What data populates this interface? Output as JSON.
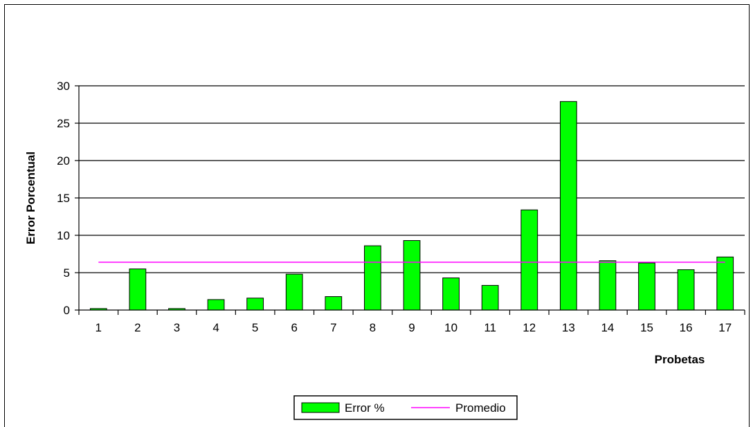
{
  "chart_data": {
    "type": "bar",
    "categories": [
      "1",
      "2",
      "3",
      "4",
      "5",
      "6",
      "7",
      "8",
      "9",
      "10",
      "11",
      "12",
      "13",
      "14",
      "15",
      "16",
      "17"
    ],
    "series": [
      {
        "name": "Error %",
        "type": "bar",
        "color": "#00ff00",
        "values": [
          0.2,
          5.5,
          0.2,
          1.4,
          1.6,
          4.8,
          1.8,
          8.6,
          9.3,
          4.3,
          3.3,
          13.4,
          27.9,
          6.6,
          6.3,
          5.4,
          7.1
        ]
      },
      {
        "name": "Promedio",
        "type": "line",
        "color": "#ff00ff",
        "values": [
          6.4,
          6.4,
          6.4,
          6.4,
          6.4,
          6.4,
          6.4,
          6.4,
          6.4,
          6.4,
          6.4,
          6.4,
          6.4,
          6.4,
          6.4,
          6.4,
          6.4
        ]
      }
    ],
    "xlabel": "Probetas",
    "ylabel": "Error Porcentual",
    "ylim": [
      0,
      30
    ],
    "yticks": [
      0,
      5,
      10,
      15,
      20,
      25,
      30
    ],
    "grid": true,
    "legend": "bottom"
  }
}
